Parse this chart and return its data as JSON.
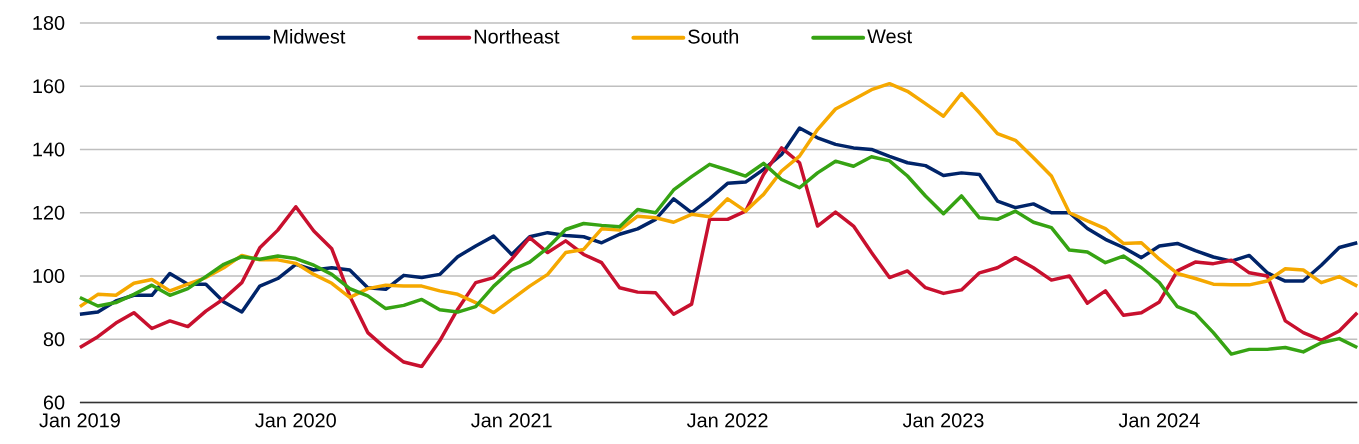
{
  "chart_data": {
    "type": "line",
    "x": [
      "2019-01",
      "2019-02",
      "2019-03",
      "2019-04",
      "2019-05",
      "2019-06",
      "2019-07",
      "2019-08",
      "2019-09",
      "2019-10",
      "2019-11",
      "2019-12",
      "2020-01",
      "2020-02",
      "2020-03",
      "2020-04",
      "2020-05",
      "2020-06",
      "2020-07",
      "2020-08",
      "2020-09",
      "2020-10",
      "2020-11",
      "2020-12",
      "2021-01",
      "2021-02",
      "2021-03",
      "2021-04",
      "2021-05",
      "2021-06",
      "2021-07",
      "2021-08",
      "2021-09",
      "2021-10",
      "2021-11",
      "2021-12",
      "2022-01",
      "2022-02",
      "2022-03",
      "2022-04",
      "2022-05",
      "2022-06",
      "2022-07",
      "2022-08",
      "2022-09",
      "2022-10",
      "2022-11",
      "2022-12",
      "2023-01",
      "2023-02",
      "2023-03",
      "2023-04",
      "2023-05",
      "2023-06",
      "2023-07",
      "2023-08",
      "2023-09",
      "2023-10",
      "2023-11",
      "2023-12",
      "2024-01",
      "2024-02",
      "2024-03",
      "2024-04",
      "2024-05",
      "2024-06",
      "2024-07",
      "2024-08",
      "2024-09",
      "2024-10",
      "2024-11",
      "2024-12"
    ],
    "series": [
      {
        "name": "Midwest",
        "color": "#002469",
        "values": [
          87.9,
          88.6,
          92.1,
          93.9,
          93.9,
          100.8,
          97.4,
          97.4,
          91.8,
          88.6,
          96.8,
          99.2,
          103.7,
          101.9,
          102.6,
          101.9,
          96.3,
          95.8,
          100.2,
          99.5,
          100.5,
          106.1,
          109.5,
          112.6,
          106.8,
          112.4,
          113.7,
          112.8,
          112.4,
          110.5,
          113.2,
          114.9,
          117.9,
          124.4,
          120,
          124.4,
          129.3,
          129.7,
          133.7,
          138.4,
          146.8,
          143.7,
          141.6,
          140.5,
          140,
          137.8,
          135.8,
          134.9,
          131.8,
          132.6,
          132.1,
          123.7,
          121.6,
          122.8,
          120,
          120,
          115,
          111.6,
          109,
          105.8,
          109.5,
          110.3,
          108,
          106,
          104.7,
          106.5,
          101,
          98.4,
          98.4,
          103.4,
          109,
          110.5
        ]
      },
      {
        "name": "Northeast",
        "color": "#c8102e",
        "values": [
          77.4,
          80.8,
          85.1,
          88.4,
          83.4,
          85.8,
          84,
          88.9,
          92.8,
          97.9,
          108.9,
          114.5,
          121.9,
          114.2,
          108.6,
          93.7,
          82.1,
          77.1,
          72.8,
          71.4,
          79.5,
          89.5,
          97.9,
          99.5,
          105.3,
          112.1,
          107.4,
          111.1,
          106.8,
          104.2,
          96.3,
          94.9,
          94.7,
          87.9,
          91.1,
          117.9,
          117.9,
          120.5,
          132.1,
          140.5,
          135.8,
          115.8,
          120.2,
          115.8,
          107.4,
          99.5,
          101.6,
          96.3,
          94.5,
          95.6,
          101,
          102.6,
          105.8,
          102.6,
          98.7,
          100,
          91.4,
          95.3,
          87.6,
          88.4,
          91.8,
          101.6,
          104.4,
          103.9,
          105,
          101,
          100,
          85.8,
          82.1,
          79.7,
          82.6,
          88.4
        ]
      },
      {
        "name": "South",
        "color": "#f5a800",
        "values": [
          90.3,
          94.2,
          93.9,
          97.7,
          98.9,
          95.3,
          97.4,
          99.5,
          102.6,
          106.5,
          105.1,
          105.1,
          104,
          100.5,
          97.7,
          93.2,
          96,
          97.1,
          96.8,
          96.8,
          95.3,
          94.2,
          91.6,
          88.4,
          92.6,
          96.8,
          100.5,
          107.4,
          108.4,
          114.9,
          114.5,
          118.9,
          118.4,
          117,
          119.5,
          118.7,
          124.4,
          120.5,
          125.8,
          133.2,
          137.9,
          146.3,
          152.8,
          155.8,
          158.9,
          160.8,
          158.4,
          154.5,
          150.5,
          157.7,
          151.6,
          145,
          142.9,
          137.4,
          131.6,
          120,
          117.4,
          115,
          110.3,
          110.5,
          105.3,
          100.8,
          99.2,
          97.4,
          97.2,
          97.2,
          98.4,
          102.3,
          101.9,
          97.9,
          99.8,
          96.8
        ]
      },
      {
        "name": "West",
        "color": "#36a313",
        "values": [
          93.2,
          90.5,
          91.6,
          94.2,
          97.1,
          93.9,
          96,
          99.8,
          103.7,
          106.1,
          105.3,
          106.3,
          105.5,
          103.4,
          100.5,
          96,
          93.7,
          89.7,
          90.7,
          92.6,
          89.3,
          88.6,
          90.3,
          96.8,
          101.9,
          104.4,
          108.9,
          114.7,
          116.6,
          116,
          115.6,
          121,
          120,
          127.2,
          131.4,
          135.3,
          133.5,
          131.6,
          135.6,
          130.5,
          127.9,
          132.6,
          136.3,
          134.7,
          137.7,
          136.4,
          131.6,
          125.3,
          119.7,
          125.3,
          118.4,
          117.9,
          120.5,
          117,
          115.3,
          108.2,
          107.6,
          104.2,
          106.3,
          102.6,
          97.9,
          90.3,
          88.1,
          82.1,
          75.3,
          76.8,
          76.8,
          77.4,
          76,
          78.9,
          80.2,
          77.4
        ]
      }
    ],
    "xlim": [
      "2019-01",
      "2024-12"
    ],
    "xticks": [
      {
        "value": "2019-01",
        "label": "Jan 2019"
      },
      {
        "value": "2020-01",
        "label": "Jan 2020"
      },
      {
        "value": "2021-01",
        "label": "Jan 2021"
      },
      {
        "value": "2022-01",
        "label": "Jan 2022"
      },
      {
        "value": "2023-01",
        "label": "Jan 2023"
      },
      {
        "value": "2024-01",
        "label": "Jan 2024"
      }
    ],
    "ylim": [
      60,
      180
    ],
    "yticks": [
      60,
      80,
      100,
      120,
      140,
      160,
      180
    ],
    "grid": "y",
    "legend": "top",
    "line_style": "solid"
  }
}
